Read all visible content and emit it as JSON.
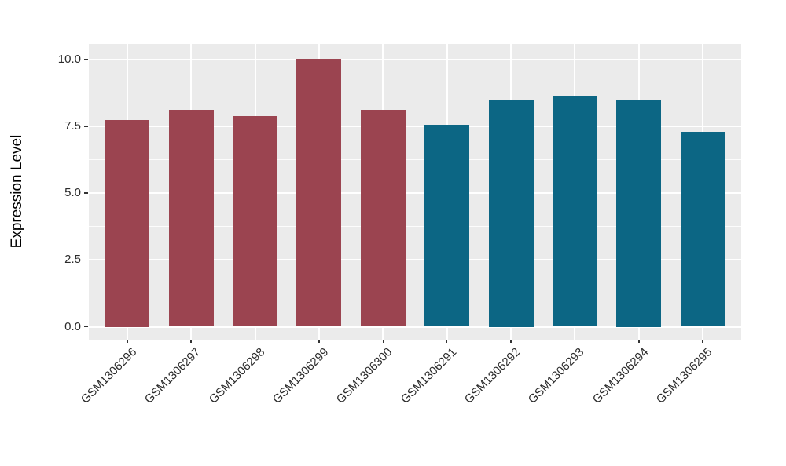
{
  "chart_data": {
    "type": "bar",
    "title": "",
    "xlabel": "",
    "ylabel": "Expression Level",
    "categories": [
      "GSM1306296",
      "GSM1306297",
      "GSM1306298",
      "GSM1306299",
      "GSM1306300",
      "GSM1306291",
      "GSM1306292",
      "GSM1306293",
      "GSM1306294",
      "GSM1306295"
    ],
    "values": [
      7.75,
      8.12,
      7.88,
      10.02,
      8.13,
      7.57,
      8.5,
      8.62,
      8.47,
      7.3
    ],
    "bar_colors": [
      "#9B4450",
      "#9B4450",
      "#9B4450",
      "#9B4450",
      "#9B4450",
      "#0C6684",
      "#0C6684",
      "#0C6684",
      "#0C6684",
      "#0C6684"
    ],
    "group_colors": {
      "left_group": "#9B4450",
      "right_group": "#0C6684"
    },
    "yticks": [
      0.0,
      2.5,
      5.0,
      7.5,
      10.0
    ],
    "ytick_labels": [
      "0.0",
      "2.5",
      "5.0",
      "7.5",
      "10.0"
    ],
    "yticks_minor": [
      1.25,
      3.75,
      6.25,
      8.75
    ],
    "ylim": [
      0,
      10.6
    ],
    "bar_width_fraction": 0.7,
    "grid": true,
    "legend": "none",
    "panel_bg": "#EBEBEB",
    "grid_color": "#FFFFFF",
    "tick_color": "#333333",
    "text_color": "#2b2b2b"
  }
}
